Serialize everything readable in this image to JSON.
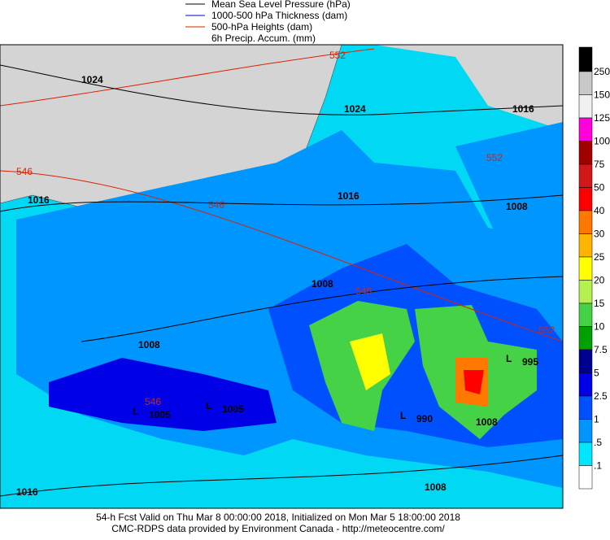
{
  "legend": [
    "Mean Sea Level Pressure (hPa)",
    "1000-500 hPa Thickness (dam)",
    "500-hPa Heights (dam)",
    "6h Precip. Accum. (mm)"
  ],
  "legend_colors": [
    "#000000",
    "#0000cc",
    "#dd2200"
  ],
  "colorbar": {
    "labels": [
      "250",
      "150",
      "125",
      "100",
      "75",
      "50",
      "40",
      "30",
      "25",
      "20",
      "15",
      "10",
      "7.5",
      "5",
      "2.5",
      "1",
      ".5",
      ".1"
    ],
    "colors": [
      "#000000",
      "#c8c8c8",
      "#f0f0f0",
      "#ff00dd",
      "#a00000",
      "#d01818",
      "#ff0000",
      "#ff7800",
      "#ffb400",
      "#ffff00",
      "#b4f050",
      "#46d246",
      "#00a000",
      "#000090",
      "#0000e6",
      "#0050ff",
      "#0096ff",
      "#00e6ff",
      "#ffffff"
    ]
  },
  "isobar_labels": [
    "1024",
    "1016",
    "1024",
    "1016",
    "1016",
    "1008",
    "1008",
    "1008",
    "1008",
    "1016",
    "1008"
  ],
  "height_labels": [
    "552",
    "546",
    "546",
    "546",
    "552",
    "552",
    "546"
  ],
  "lows": [
    {
      "letter": "L",
      "value": "1005"
    },
    {
      "letter": "L",
      "value": "1005"
    },
    {
      "letter": "L",
      "value": "990"
    },
    {
      "letter": "L",
      "value": "995"
    }
  ],
  "footer": [
    "54-h Fcst Valid on Thu Mar  8 00:00:00 2018, Initialized on Mon Mar  5 18:00:00 2018",
    "CMC-RDPS data provided by Environment Canada - http://meteocentre.com/"
  ]
}
